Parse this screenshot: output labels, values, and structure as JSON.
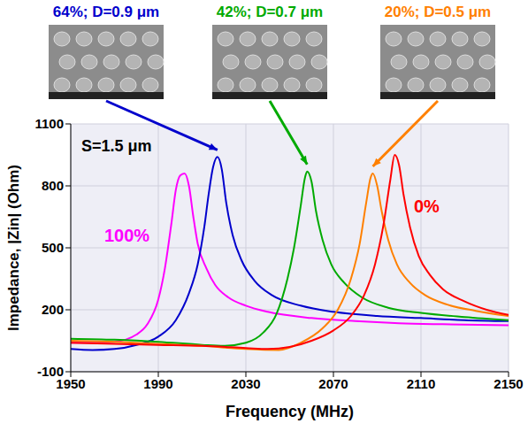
{
  "chart_data": {
    "type": "line",
    "x_label": "Frequency (MHz)",
    "y_label": "Impedance, |Zin|  (Ohm)",
    "xlim": [
      1950,
      2150
    ],
    "xticks": [
      1950,
      1990,
      2030,
      2070,
      2110,
      2150
    ],
    "ylim": [
      -100,
      1100
    ],
    "yticks": [
      -100,
      200,
      500,
      800,
      1100
    ],
    "grid": true,
    "annotations": [
      "S=1.5 μm"
    ],
    "series": [
      {
        "name": "100%",
        "color": "#ff00ff",
        "x": [
          1950,
          1960,
          1970,
          1980,
          1985,
          1990,
          1993,
          1996,
          1998,
          2000,
          2002,
          2004,
          2006,
          2008,
          2012,
          2016,
          2022,
          2030,
          2040,
          2060,
          2080,
          2100,
          2120,
          2150
        ],
        "values": [
          40,
          40,
          45,
          80,
          130,
          250,
          400,
          620,
          780,
          850,
          860,
          800,
          650,
          520,
          400,
          320,
          260,
          220,
          190,
          160,
          145,
          135,
          130,
          125
        ]
      },
      {
        "name": "64%; D=0.9 μm",
        "color": "#0000cc",
        "x": [
          1950,
          1960,
          1970,
          1980,
          1990,
          1998,
          2004,
          2008,
          2011,
          2013,
          2015,
          2017,
          2019,
          2021,
          2024,
          2028,
          2034,
          2042,
          2055,
          2070,
          2090,
          2110,
          2130,
          2150
        ],
        "values": [
          10,
          5,
          10,
          30,
          70,
          150,
          280,
          420,
          600,
          760,
          890,
          940,
          880,
          720,
          560,
          440,
          340,
          270,
          220,
          190,
          170,
          160,
          150,
          145
        ]
      },
      {
        "name": "42%; D=0.7 μm",
        "color": "#00aa00",
        "x": [
          1950,
          1970,
          1990,
          2010,
          2020,
          2030,
          2038,
          2044,
          2049,
          2052,
          2055,
          2057,
          2058,
          2060,
          2062,
          2065,
          2069,
          2075,
          2083,
          2095,
          2110,
          2130,
          2150
        ],
        "values": [
          60,
          55,
          45,
          30,
          25,
          40,
          90,
          180,
          350,
          500,
          700,
          840,
          870,
          820,
          680,
          540,
          420,
          330,
          260,
          210,
          185,
          165,
          150
        ]
      },
      {
        "name": "20%; D=0.5 μm",
        "color": "#ff8000",
        "x": [
          1950,
          1970,
          1990,
          2010,
          2030,
          2045,
          2055,
          2065,
          2072,
          2078,
          2082,
          2085,
          2087,
          2088,
          2090,
          2092,
          2095,
          2099,
          2105,
          2112,
          2122,
          2135,
          2150
        ],
        "values": [
          50,
          45,
          35,
          25,
          10,
          5,
          40,
          110,
          200,
          350,
          520,
          720,
          840,
          860,
          800,
          680,
          540,
          420,
          330,
          270,
          225,
          195,
          170
        ]
      },
      {
        "name": "0%",
        "color": "#ff0000",
        "x": [
          1950,
          1970,
          1990,
          2010,
          2030,
          2040,
          2050,
          2060,
          2070,
          2078,
          2084,
          2089,
          2093,
          2096,
          2098,
          2100,
          2102,
          2105,
          2109,
          2114,
          2120,
          2130,
          2140,
          2150
        ],
        "values": [
          40,
          35,
          30,
          25,
          15,
          10,
          20,
          50,
          100,
          170,
          270,
          420,
          620,
          830,
          950,
          900,
          760,
          600,
          460,
          370,
          300,
          240,
          200,
          175
        ]
      }
    ]
  }
}
